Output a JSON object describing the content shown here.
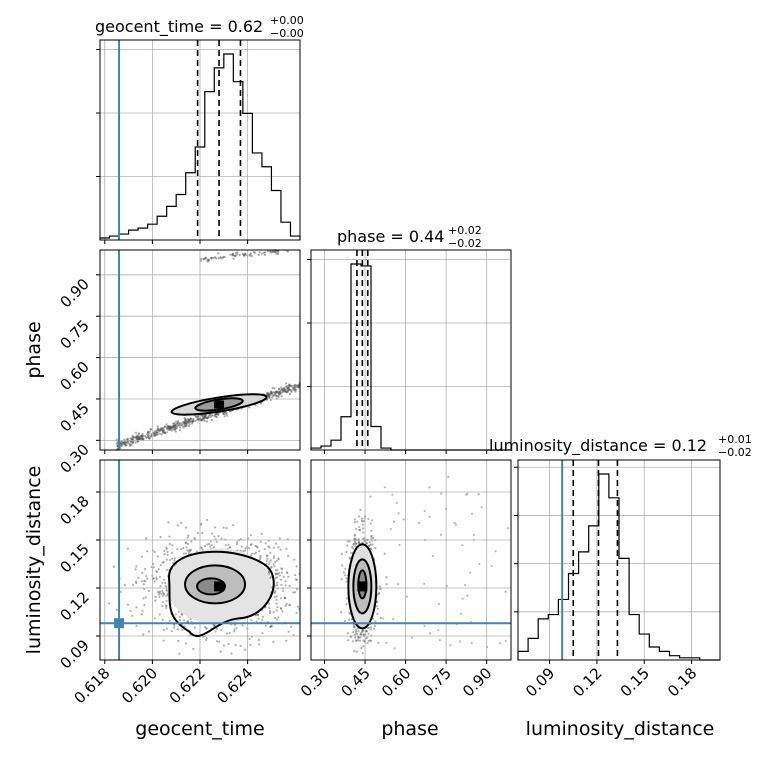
{
  "chart_data": {
    "type": "corner",
    "parameters": [
      "geocent_time",
      "phase",
      "luminosity_distance"
    ],
    "truth": {
      "geocent_time": 0.6186,
      "phase": null,
      "luminosity_distance": 0.098
    },
    "colors": {
      "truth": "#4682b4",
      "hist": "#000000",
      "grid": "#b0b0b0",
      "points": "#555555"
    },
    "panels": {
      "geocent_time_hist": {
        "title": "geocent_time = 0.62",
        "title_sup": "+0.00",
        "title_sub": "−0.00",
        "xlim": [
          0.6178,
          0.6262
        ],
        "quantiles": [
          0.6219,
          0.6228,
          0.6237
        ],
        "bin_edges": [
          0.6178,
          0.6182,
          0.6186,
          0.619,
          0.6194,
          0.6198,
          0.6202,
          0.6206,
          0.621,
          0.6214,
          0.6218,
          0.6222,
          0.6226,
          0.623,
          0.6234,
          0.6238,
          0.6242,
          0.6246,
          0.625,
          0.6254,
          0.6258,
          0.6262
        ],
        "counts": [
          1,
          2,
          3,
          5,
          6,
          8,
          12,
          17,
          23,
          34,
          47,
          75,
          87,
          94,
          80,
          64,
          44,
          37,
          25,
          9,
          2
        ]
      },
      "phase_hist": {
        "title": "phase = 0.44",
        "title_sup": "+0.02",
        "title_sub": "−0.02",
        "xlim": [
          0.25,
          0.99
        ],
        "quantiles": [
          0.42,
          0.44,
          0.46
        ],
        "bin_edges": [
          0.25,
          0.287,
          0.324,
          0.361,
          0.398,
          0.435,
          0.472,
          0.509,
          0.546,
          0.583,
          0.62,
          0.657,
          0.694,
          0.731,
          0.768,
          0.805,
          0.842,
          0.879,
          0.916,
          0.953,
          0.99
        ],
        "counts": [
          1,
          2,
          5,
          17,
          95,
          94,
          12,
          1,
          0,
          0,
          0,
          0,
          0,
          0,
          0,
          0,
          0,
          0,
          0,
          0
        ]
      },
      "luminosity_distance_hist": {
        "title": "luminosity_distance = 0.12",
        "title_sup": "+0.01",
        "title_sub": "−0.02",
        "xlim": [
          0.07,
          0.198
        ],
        "quantiles": [
          0.105,
          0.121,
          0.133
        ],
        "bin_edges": [
          0.07,
          0.0764,
          0.0828,
          0.0892,
          0.0956,
          0.102,
          0.1084,
          0.1148,
          0.1212,
          0.1276,
          0.134,
          0.1404,
          0.1468,
          0.1532,
          0.1596,
          0.166,
          0.1724,
          0.1788,
          0.1852,
          0.1916,
          0.198
        ],
        "counts": [
          4,
          10,
          19,
          21,
          28,
          40,
          50,
          62,
          86,
          75,
          47,
          21,
          12,
          6,
          4,
          2,
          1,
          1,
          0,
          0
        ]
      },
      "phase_vs_geocent_time": {
        "xlim": [
          0.6178,
          0.6262
        ],
        "ylim": [
          0.265,
          0.99
        ],
        "trend": {
          "x": [
            0.6185,
            0.6262
          ],
          "y": [
            0.28,
            0.5
          ]
        },
        "peak": {
          "x": 0.6228,
          "y": 0.43
        }
      },
      "luminosity_distance_vs_geocent_time": {
        "xlim": [
          0.6178,
          0.6262
        ],
        "ylim": [
          0.075,
          0.2
        ],
        "peak": {
          "x": 0.6228,
          "y": 0.121
        }
      },
      "luminosity_distance_vs_phase": {
        "xlim": [
          0.25,
          0.99
        ],
        "ylim": [
          0.075,
          0.2
        ],
        "peak": {
          "x": 0.44,
          "y": 0.121
        }
      }
    },
    "xticks": {
      "geocent_time": [
        "0.618",
        "0.620",
        "0.622",
        "0.624"
      ],
      "phase": [
        "0.30",
        "0.45",
        "0.60",
        "0.75",
        "0.90"
      ],
      "luminosity_distance": [
        "0.09",
        "0.12",
        "0.15",
        "0.18"
      ]
    },
    "xtick_values": {
      "geocent_time": [
        0.618,
        0.62,
        0.622,
        0.624
      ],
      "phase": [
        0.3,
        0.45,
        0.6,
        0.75,
        0.9
      ],
      "luminosity_distance": [
        0.09,
        0.12,
        0.15,
        0.18
      ]
    },
    "yticks": {
      "phase": [
        "0.30",
        "0.45",
        "0.60",
        "0.75",
        "0.90"
      ],
      "luminosity_distance": [
        "0.09",
        "0.12",
        "0.15",
        "0.18"
      ]
    },
    "ytick_values": {
      "phase": [
        0.3,
        0.45,
        0.6,
        0.75,
        0.9
      ],
      "luminosity_distance": [
        0.09,
        0.12,
        0.15,
        0.18
      ]
    },
    "axis_labels": {
      "x": [
        "geocent_time",
        "phase",
        "luminosity_distance"
      ],
      "y": [
        "phase",
        "luminosity_distance"
      ]
    }
  }
}
